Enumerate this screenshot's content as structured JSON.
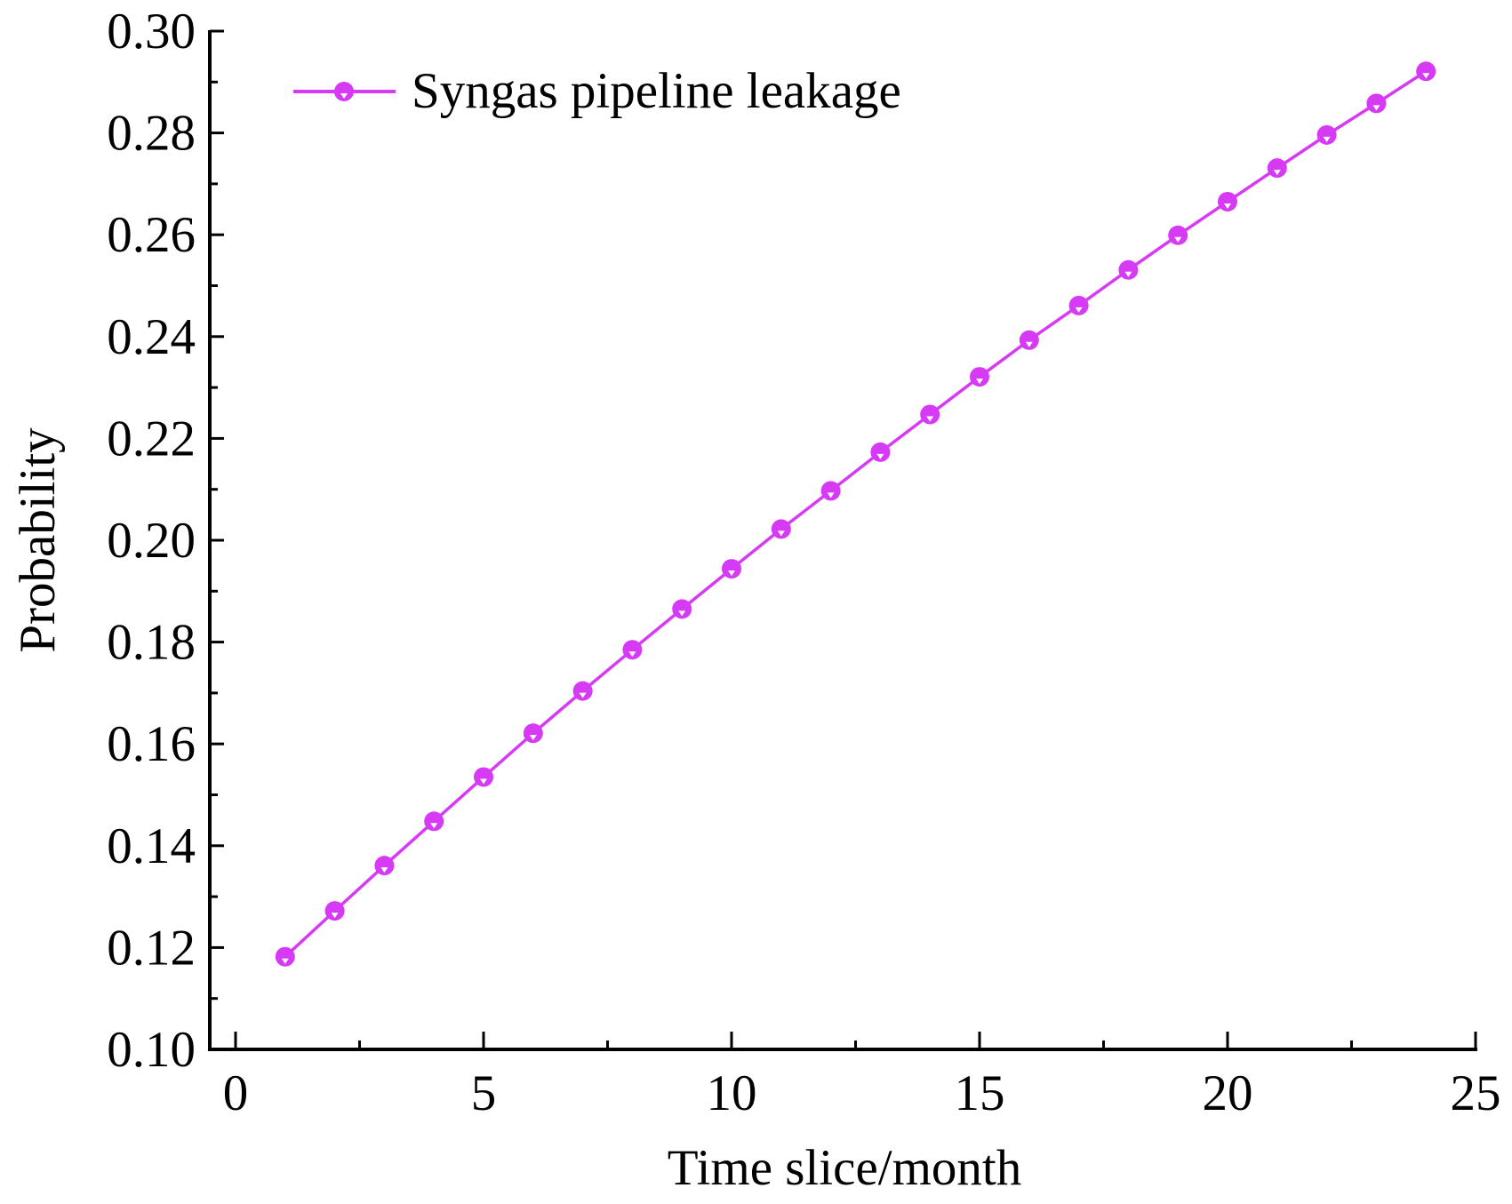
{
  "chart_data": {
    "type": "line",
    "title": "",
    "xlabel": "Time slice/month",
    "ylabel": "Probability",
    "xlim": [
      0,
      25
    ],
    "ylim": [
      0.1,
      0.3
    ],
    "xticks": [
      "0",
      "5",
      "10",
      "15",
      "20",
      "25"
    ],
    "yticks": [
      "0.10",
      "0.12",
      "0.14",
      "0.16",
      "0.18",
      "0.20",
      "0.22",
      "0.24",
      "0.26",
      "0.28",
      "0.30"
    ],
    "grid": false,
    "legend_position": "top-left",
    "series": [
      {
        "name": "Syngas pipeline leakage",
        "color": "#D63AF5",
        "marker": "circle",
        "x": [
          1,
          2,
          3,
          4,
          5,
          6,
          7,
          8,
          9,
          10,
          11,
          12,
          13,
          14,
          15,
          16,
          17,
          18,
          19,
          20,
          21,
          22,
          23,
          24
        ],
        "y": [
          0.1182,
          0.1272,
          0.1361,
          0.1448,
          0.1535,
          0.1621,
          0.1704,
          0.1785,
          0.1865,
          0.1944,
          0.2022,
          0.2097,
          0.2173,
          0.2247,
          0.2321,
          0.2393,
          0.2461,
          0.2531,
          0.2599,
          0.2665,
          0.2731,
          0.2796,
          0.2858,
          0.2921
        ]
      }
    ]
  }
}
